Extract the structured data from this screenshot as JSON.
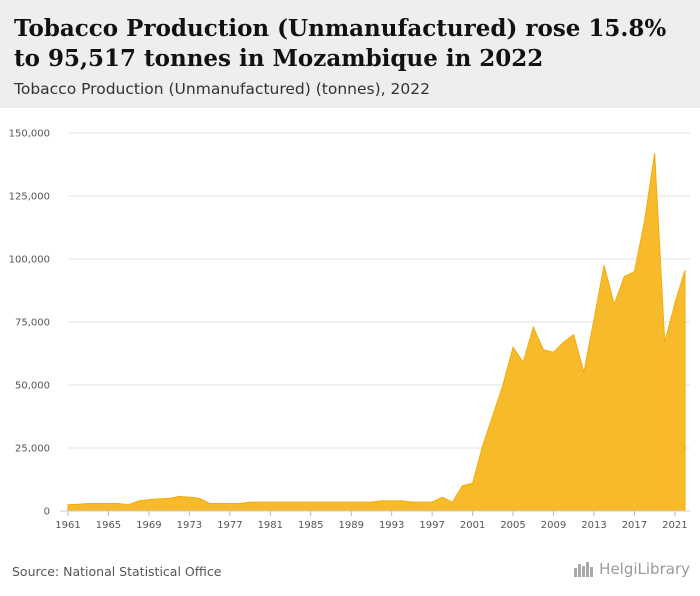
{
  "header": {
    "title": "Tobacco Production (Unmanufactured) rose 15.8% to 95,517 tonnes in Mozambique in 2022",
    "subtitle": "Tobacco Production (Unmanufactured) (tonnes), 2022"
  },
  "footer": {
    "source": "Source: National Statistical Office",
    "brand": "HelgiLibrary",
    "brand_icon": "city-skyline-icon"
  },
  "colors": {
    "area_fill": "#f7ba2b",
    "area_stroke": "#f2ac12",
    "grid": "#e2e2e2",
    "header_bg": "#eeeeee"
  },
  "chart_data": {
    "type": "area",
    "title": "Tobacco Production (Unmanufactured) (tonnes), 2022",
    "xlabel": "",
    "ylabel": "",
    "x": [
      1961,
      1962,
      1963,
      1964,
      1965,
      1966,
      1967,
      1968,
      1969,
      1970,
      1971,
      1972,
      1973,
      1974,
      1975,
      1976,
      1977,
      1978,
      1979,
      1980,
      1981,
      1982,
      1983,
      1984,
      1985,
      1986,
      1987,
      1988,
      1989,
      1990,
      1991,
      1992,
      1993,
      1994,
      1995,
      1996,
      1997,
      1998,
      1999,
      2000,
      2001,
      2002,
      2003,
      2004,
      2005,
      2006,
      2007,
      2008,
      2009,
      2010,
      2011,
      2012,
      2013,
      2014,
      2015,
      2016,
      2017,
      2018,
      2019,
      2020,
      2021,
      2022
    ],
    "values": [
      2500,
      2700,
      3000,
      3000,
      3000,
      3000,
      2500,
      4000,
      4500,
      4800,
      5000,
      5800,
      5500,
      5000,
      3000,
      3000,
      3000,
      3000,
      3500,
      3500,
      3500,
      3500,
      3500,
      3500,
      3500,
      3500,
      3500,
      3500,
      3500,
      3500,
      3500,
      4000,
      4000,
      4000,
      3500,
      3500,
      3500,
      5500,
      3500,
      10000,
      11000,
      26000,
      38000,
      50000,
      65000,
      59000,
      73000,
      64000,
      63000,
      67000,
      70000,
      55000,
      76000,
      97500,
      82000,
      93000,
      95000,
      115000,
      142000,
      67000,
      82500,
      95517
    ],
    "ylim": [
      0,
      150000
    ],
    "y_ticks": [
      "0",
      "25,000",
      "50,000",
      "75,000",
      "100,000",
      "125,000",
      "150,000"
    ],
    "y_tick_values": [
      0,
      25000,
      50000,
      75000,
      100000,
      125000,
      150000
    ],
    "x_ticks": [
      "1961",
      "1965",
      "1969",
      "1973",
      "1977",
      "1981",
      "1985",
      "1989",
      "1993",
      "1997",
      "2001",
      "2005",
      "2009",
      "2013",
      "2017",
      "2021"
    ],
    "x_tick_values": [
      1961,
      1965,
      1969,
      1973,
      1977,
      1981,
      1985,
      1989,
      1993,
      1997,
      2001,
      2005,
      2009,
      2013,
      2017,
      2021
    ],
    "grid": true,
    "legend": "none"
  }
}
